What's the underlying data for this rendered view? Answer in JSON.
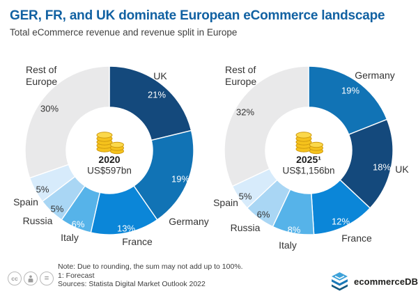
{
  "header": {
    "title": "GER, FR, and UK dominate European eCommerce landscape",
    "subtitle": "Total eCommerce revenue and revenue split in Europe"
  },
  "chart_data": [
    {
      "type": "pie",
      "subtype": "donut",
      "title": "2020",
      "center_label": "2020",
      "center_value": "US$597bn",
      "start_angle_deg": 0,
      "direction": "clockwise",
      "segments": [
        {
          "label": "UK",
          "value": 21,
          "pct": "21%",
          "color": "#14497c",
          "pct_text": "light"
        },
        {
          "label": "Germany",
          "value": 19,
          "pct": "19%",
          "color": "#1173b5",
          "pct_text": "light"
        },
        {
          "label": "France",
          "value": 13,
          "pct": "13%",
          "color": "#0b86d8",
          "pct_text": "light"
        },
        {
          "label": "Italy",
          "value": 6,
          "pct": "6%",
          "color": "#56b3e9",
          "pct_text": "light"
        },
        {
          "label": "Russia",
          "value": 5,
          "pct": "5%",
          "color": "#a9d6f4",
          "pct_text": "dark"
        },
        {
          "label": "Spain",
          "value": 5,
          "pct": "5%",
          "color": "#d7ebfb",
          "pct_text": "dark"
        },
        {
          "label": "Rest of Europe",
          "value": 30,
          "pct": "30%",
          "color": "#e9e9ea",
          "pct_text": "dark"
        }
      ]
    },
    {
      "type": "pie",
      "subtype": "donut",
      "title": "2025 (forecast)",
      "center_label": "2025¹",
      "center_value": "US$1,156bn",
      "start_angle_deg": 0,
      "direction": "clockwise",
      "segments": [
        {
          "label": "Germany",
          "value": 19,
          "pct": "19%",
          "color": "#1173b5",
          "pct_text": "light"
        },
        {
          "label": "UK",
          "value": 18,
          "pct": "18%",
          "color": "#14497c",
          "pct_text": "light"
        },
        {
          "label": "France",
          "value": 12,
          "pct": "12%",
          "color": "#0b86d8",
          "pct_text": "light"
        },
        {
          "label": "Italy",
          "value": 8,
          "pct": "8%",
          "color": "#56b3e9",
          "pct_text": "light"
        },
        {
          "label": "Russia",
          "value": 6,
          "pct": "6%",
          "color": "#a9d6f4",
          "pct_text": "dark"
        },
        {
          "label": "Spain",
          "value": 5,
          "pct": "5%",
          "color": "#d7ebfb",
          "pct_text": "dark"
        },
        {
          "label": "Rest of Europe",
          "value": 32,
          "pct": "32%",
          "color": "#e9e9ea",
          "pct_text": "dark"
        }
      ]
    }
  ],
  "footer": {
    "note": "Note: Due to rounding, the sum may not add up to 100%.",
    "forecast": "1: Forecast",
    "sources": "Sources: Statista Digital Market Outlook 2022",
    "license": {
      "cc": "cc",
      "equal": "="
    },
    "brand": "ecommerceDB"
  },
  "colors": {
    "title_blue": "#1161a2",
    "coin_gold": "#f5c21c",
    "rest_gray": "#e9e9ea"
  }
}
